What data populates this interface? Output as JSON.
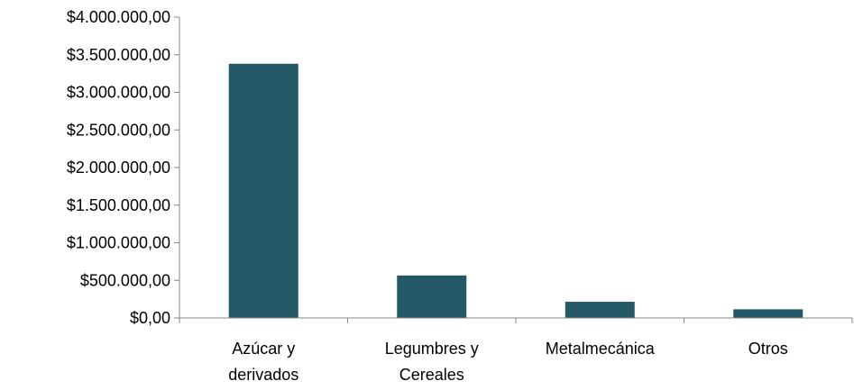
{
  "chart_data": {
    "type": "bar",
    "categories": [
      [
        "Azúcar y",
        "derivados"
      ],
      [
        "Legumbres y",
        "Cereales"
      ],
      [
        "Metalmecánica"
      ],
      [
        "Otros"
      ]
    ],
    "values": [
      3380000,
      565000,
      215000,
      115000
    ],
    "yticks": [
      "$0,00",
      "$500.000,00",
      "$1.000.000,00",
      "$1.500.000,00",
      "$2.000.000,00",
      "$2.500.000,00",
      "$3.000.000,00",
      "$3.500.000,00",
      "$4.000.000,00"
    ],
    "ylim": [
      0,
      4000000
    ],
    "ytick_step": 500000,
    "title": "",
    "xlabel": "",
    "ylabel": "",
    "grid": false,
    "legend": "none",
    "bar_color": "#245a67",
    "axis_color": "#868686"
  }
}
